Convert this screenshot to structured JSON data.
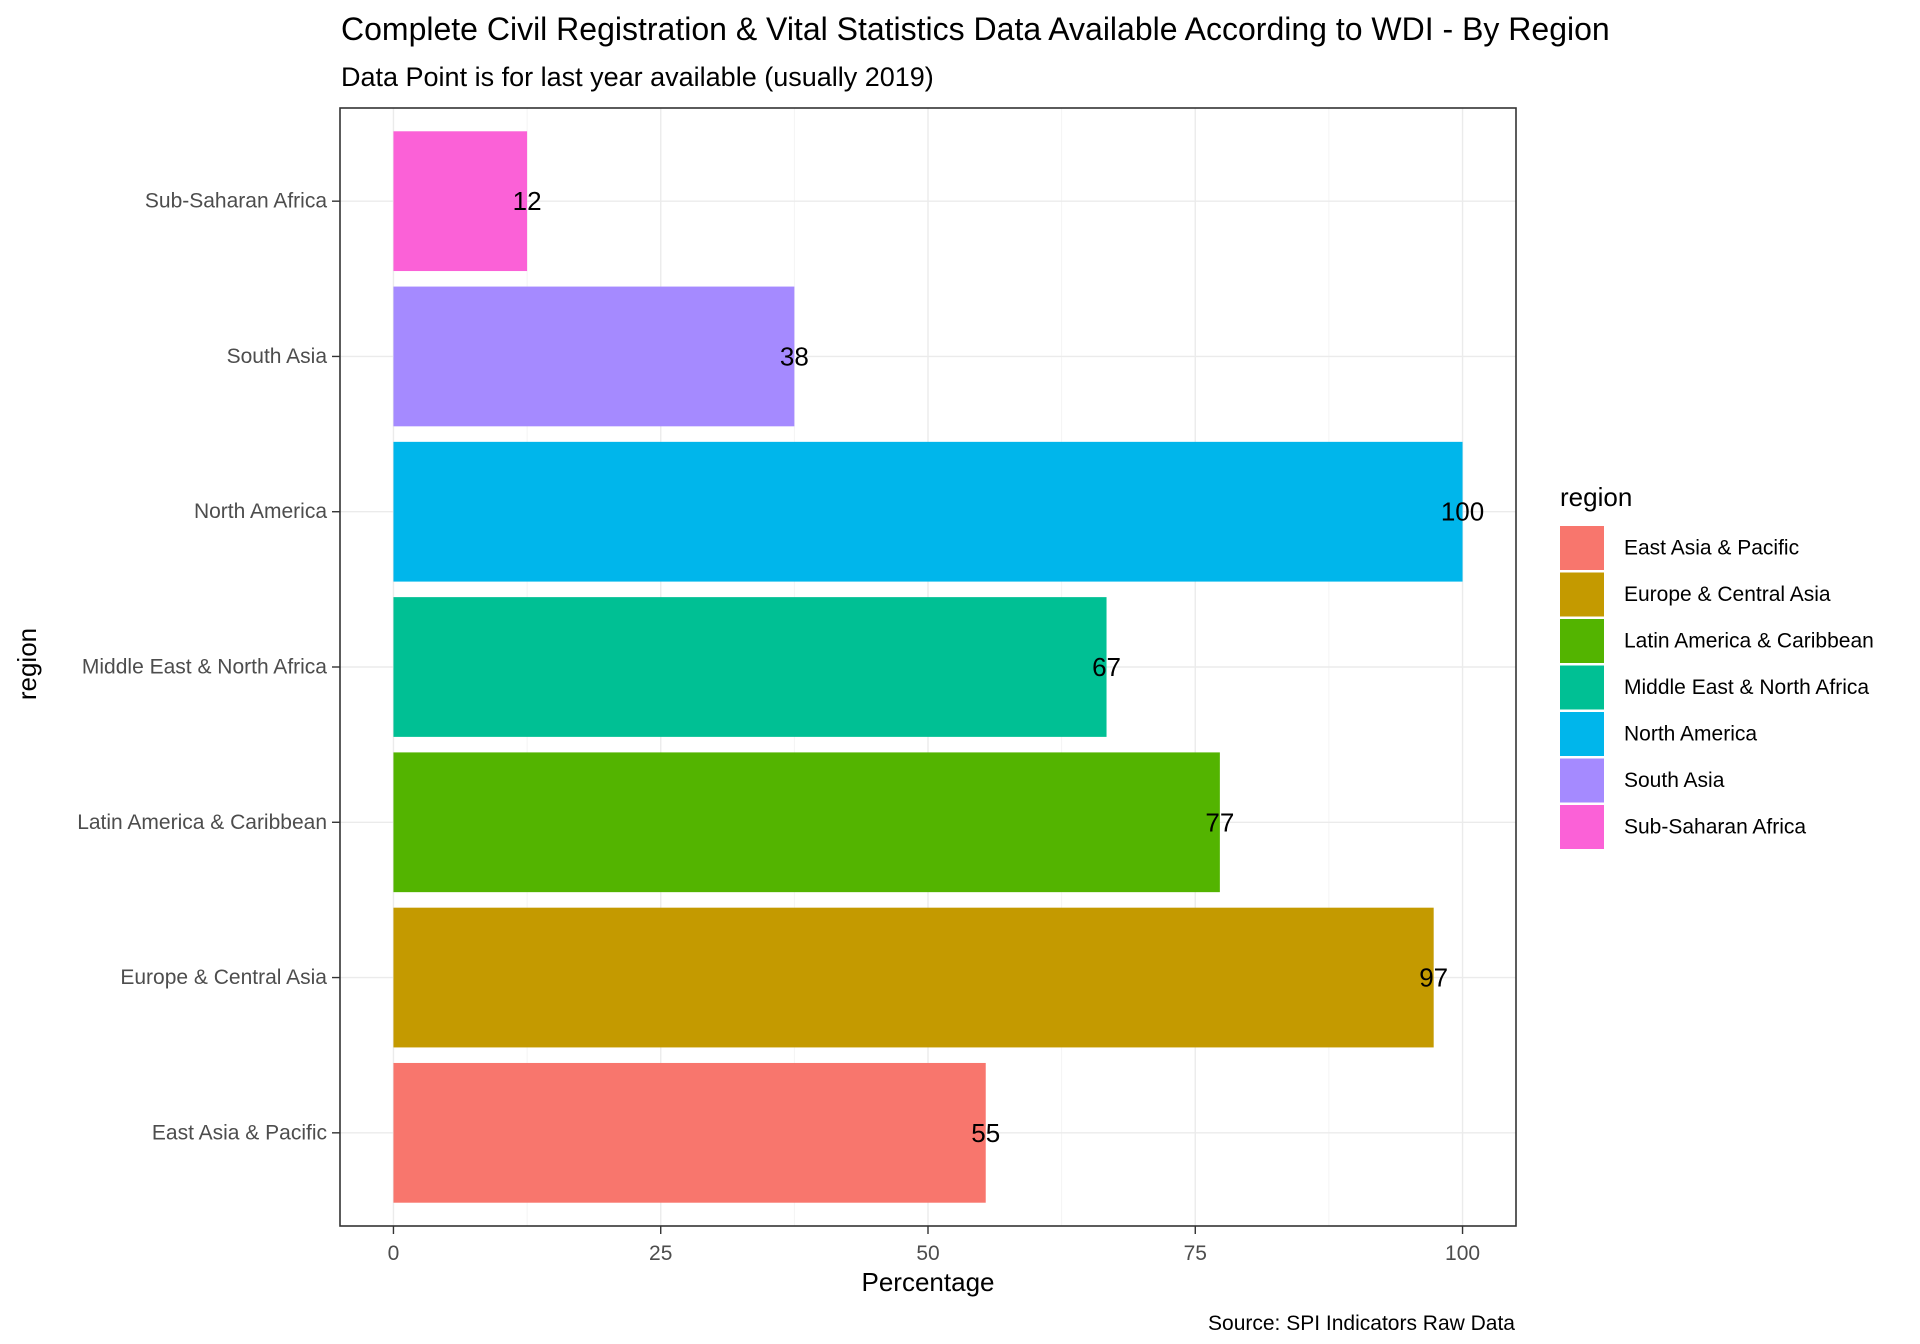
{
  "chart_data": {
    "type": "bar",
    "orientation": "horizontal",
    "title": "Complete Civil Registration & Vital Statistics Data Available According to WDI - By Region",
    "subtitle": "Data Point is for last year available (usually 2019)",
    "xlabel": "Percentage",
    "ylabel": "region",
    "caption": "Source: SPI Indicators Raw Data",
    "xlim": [
      0,
      105
    ],
    "xticks": [
      0,
      25,
      50,
      75,
      100
    ],
    "grid": true,
    "categories": [
      "East Asia & Pacific",
      "Europe & Central Asia",
      "Latin America & Caribbean",
      "Middle East & North Africa",
      "North America",
      "South Asia",
      "Sub-Saharan Africa"
    ],
    "values": [
      55.4,
      97.3,
      77.3,
      66.7,
      100,
      37.5,
      12.5
    ],
    "labels": [
      "55",
      "97",
      "77",
      "67",
      "100",
      "38",
      "12"
    ],
    "colors": [
      "#F8766D",
      "#C49A00",
      "#53B400",
      "#00C094",
      "#00B6EB",
      "#A58AFF",
      "#FB61D7"
    ],
    "legend": {
      "title": "region",
      "position": "right",
      "items": [
        "East Asia & Pacific",
        "Europe & Central Asia",
        "Latin America & Caribbean",
        "Middle East & North Africa",
        "North America",
        "South Asia",
        "Sub-Saharan Africa"
      ]
    }
  }
}
